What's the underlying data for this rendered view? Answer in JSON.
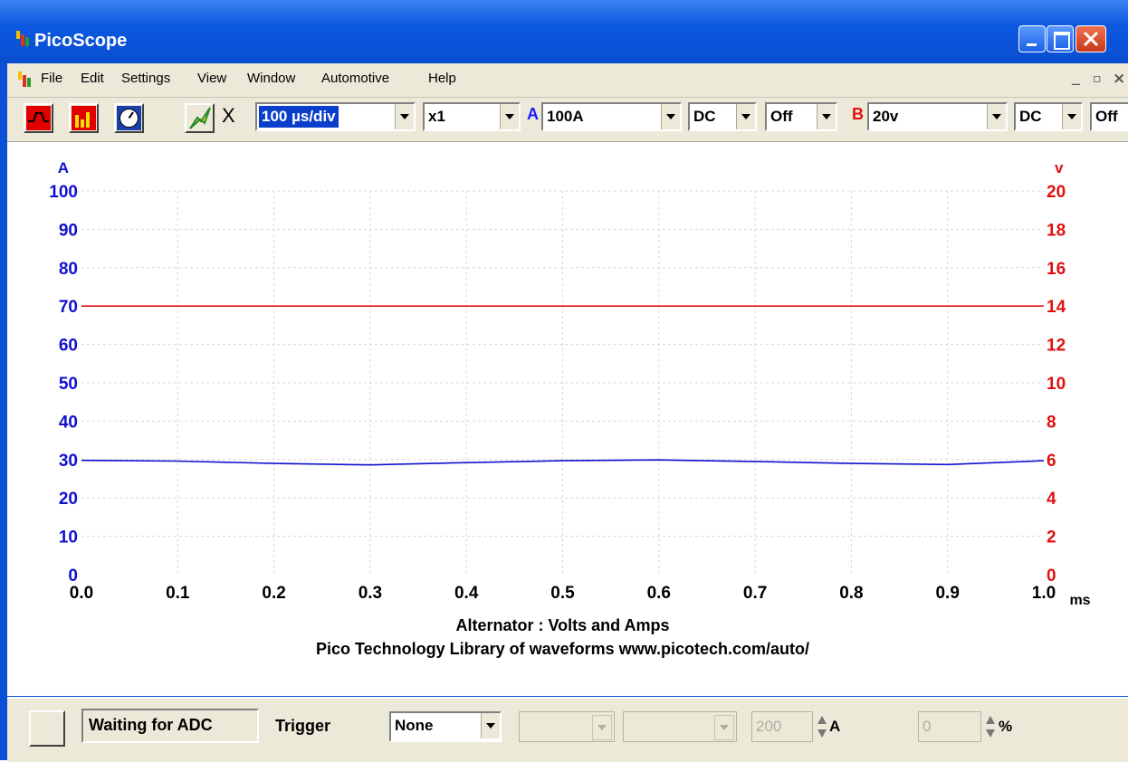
{
  "window": {
    "title": "PicoScope"
  },
  "menu": [
    "File",
    "Edit",
    "Settings",
    "View",
    "Window",
    "Automotive",
    "Help"
  ],
  "toolbar": {
    "x_label": "X",
    "timebase": "100 µs/div",
    "multiplier": "x1",
    "channel_a": {
      "letter": "A",
      "range": "100A",
      "coupling": "DC",
      "offset": "Off"
    },
    "channel_b": {
      "letter": "B",
      "range": "20v",
      "coupling": "DC",
      "offset": "Off"
    }
  },
  "chart_data": {
    "type": "line",
    "x": [
      0.0,
      0.1,
      0.2,
      0.3,
      0.4,
      0.5,
      0.6,
      0.7,
      0.8,
      0.9,
      1.0
    ],
    "x_tick_labels": [
      "0.0",
      "0.1",
      "0.2",
      "0.3",
      "0.4",
      "0.5",
      "0.6",
      "0.7",
      "0.8",
      "0.9",
      "1.0"
    ],
    "xlim": [
      0.0,
      1.0
    ],
    "x_unit": "ms",
    "y_left": {
      "unit": "A",
      "ylim": [
        0,
        100
      ],
      "tick_labels": [
        "0",
        "10",
        "20",
        "30",
        "40",
        "50",
        "60",
        "70",
        "80",
        "90",
        "100"
      ],
      "color": "#1010d0"
    },
    "y_right": {
      "unit": "v",
      "ylim": [
        0,
        20
      ],
      "tick_labels": [
        "0",
        "2",
        "4",
        "6",
        "8",
        "10",
        "12",
        "14",
        "16",
        "18",
        "20"
      ],
      "color": "#e01010"
    },
    "series": [
      {
        "axis": "left",
        "color": "#1010d0",
        "values": [
          29.8,
          29.6,
          29.0,
          28.6,
          29.2,
          29.7,
          29.9,
          29.5,
          29.0,
          28.7,
          29.7
        ]
      },
      {
        "axis": "right",
        "color": "#e01010",
        "values": [
          14,
          14,
          14,
          14,
          14,
          14,
          14,
          14,
          14,
          14,
          14
        ]
      }
    ],
    "title": "Alternator : Volts and Amps",
    "subtitle": "Pico Technology Library of waveforms www.picotech.com/auto/",
    "grid": true
  },
  "statusbar": {
    "status_text": "Waiting for ADC",
    "trigger_label": "Trigger",
    "trigger_value": "None",
    "threshold_value": "200",
    "threshold_unit": "A",
    "percent_value": "0",
    "percent_unit": "%"
  }
}
